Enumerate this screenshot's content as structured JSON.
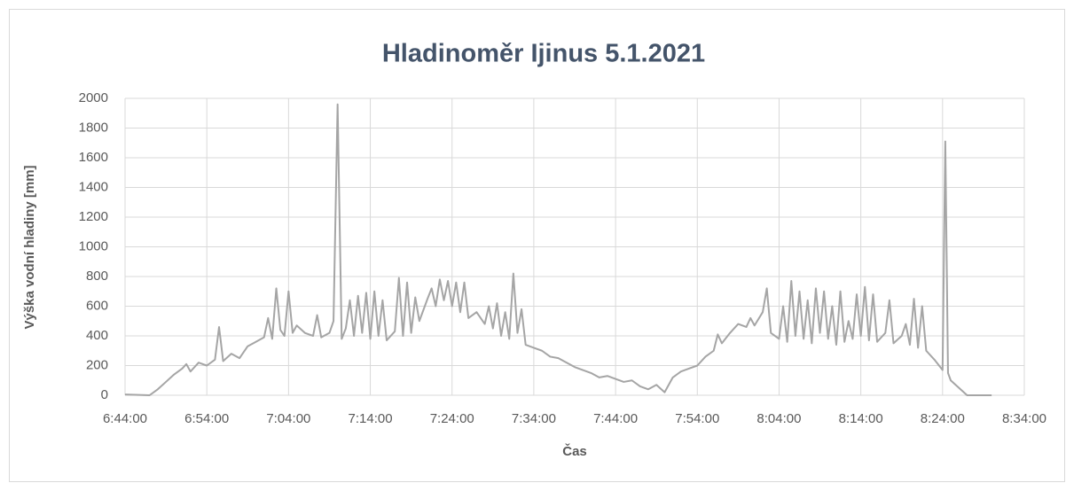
{
  "chart_data": {
    "type": "line",
    "title": "Hladinoměr Ijinus 5.1.2021",
    "x_label": "Čas",
    "y_label": "Výška vodní hladiny [mm]",
    "xlim": [
      "6:44:00",
      "8:34:00"
    ],
    "xticks": [
      "6:44:00",
      "6:54:00",
      "7:04:00",
      "7:14:00",
      "7:24:00",
      "7:34:00",
      "7:44:00",
      "7:54:00",
      "8:04:00",
      "8:14:00",
      "8:24:00",
      "8:34:00"
    ],
    "ylim": [
      0,
      2000
    ],
    "yticks": [
      0,
      200,
      400,
      600,
      800,
      1000,
      1200,
      1400,
      1600,
      1800,
      2000
    ],
    "grid": true,
    "x": [
      "6:44:00",
      "6:47:00",
      "6:48:00",
      "6:49:00",
      "6:50:00",
      "6:51:00",
      "6:51:30",
      "6:52:00",
      "6:53:00",
      "6:54:00",
      "6:55:00",
      "6:55:30",
      "6:56:00",
      "6:57:00",
      "6:58:00",
      "6:59:00",
      "7:00:00",
      "7:01:00",
      "7:01:30",
      "7:02:00",
      "7:02:30",
      "7:03:00",
      "7:03:30",
      "7:04:00",
      "7:04:30",
      "7:05:00",
      "7:06:00",
      "7:07:00",
      "7:07:30",
      "7:08:00",
      "7:09:00",
      "7:09:30",
      "7:10:00",
      "7:10:30",
      "7:11:00",
      "7:11:30",
      "7:12:00",
      "7:12:30",
      "7:13:00",
      "7:13:30",
      "7:14:00",
      "7:14:30",
      "7:15:00",
      "7:15:30",
      "7:16:00",
      "7:17:00",
      "7:17:30",
      "7:18:00",
      "7:18:30",
      "7:19:00",
      "7:19:30",
      "7:20:00",
      "7:21:00",
      "7:21:30",
      "7:22:00",
      "7:22:30",
      "7:23:00",
      "7:23:30",
      "7:24:00",
      "7:24:30",
      "7:25:00",
      "7:25:30",
      "7:26:00",
      "7:27:00",
      "7:28:00",
      "7:28:30",
      "7:29:00",
      "7:29:30",
      "7:30:00",
      "7:30:30",
      "7:31:00",
      "7:31:30",
      "7:32:00",
      "7:32:30",
      "7:33:00",
      "7:34:00",
      "7:35:00",
      "7:36:00",
      "7:37:00",
      "7:38:00",
      "7:39:00",
      "7:40:00",
      "7:41:00",
      "7:42:00",
      "7:43:00",
      "7:44:00",
      "7:45:00",
      "7:46:00",
      "7:47:00",
      "7:48:00",
      "7:49:00",
      "7:50:00",
      "7:51:00",
      "7:52:00",
      "7:53:00",
      "7:54:00",
      "7:55:00",
      "7:56:00",
      "7:56:30",
      "7:57:00",
      "7:58:00",
      "7:59:00",
      "8:00:00",
      "8:00:30",
      "8:01:00",
      "8:02:00",
      "8:02:30",
      "8:03:00",
      "8:04:00",
      "8:04:30",
      "8:05:00",
      "8:05:30",
      "8:06:00",
      "8:06:30",
      "8:07:00",
      "8:07:30",
      "8:08:00",
      "8:08:30",
      "8:09:00",
      "8:09:30",
      "8:10:00",
      "8:10:30",
      "8:11:00",
      "8:11:30",
      "8:12:00",
      "8:12:30",
      "8:13:00",
      "8:13:30",
      "8:14:00",
      "8:14:30",
      "8:15:00",
      "8:15:30",
      "8:16:00",
      "8:17:00",
      "8:17:30",
      "8:18:00",
      "8:19:00",
      "8:19:30",
      "8:20:00",
      "8:20:30",
      "8:21:00",
      "8:21:30",
      "8:22:00",
      "8:23:00",
      "8:24:00",
      "8:24:20",
      "8:24:40",
      "8:25:00",
      "8:26:00",
      "8:27:00",
      "8:30:00"
    ],
    "series": [
      {
        "name": "Výška vodní hladiny",
        "color": "#a5a5a5",
        "values": [
          5,
          0,
          40,
          90,
          140,
          180,
          210,
          160,
          220,
          200,
          240,
          460,
          230,
          280,
          250,
          330,
          360,
          390,
          520,
          380,
          720,
          440,
          400,
          700,
          420,
          470,
          420,
          400,
          540,
          390,
          420,
          500,
          1960,
          380,
          450,
          640,
          400,
          670,
          420,
          690,
          380,
          700,
          400,
          640,
          370,
          430,
          790,
          400,
          760,
          420,
          660,
          500,
          650,
          720,
          600,
          780,
          640,
          770,
          600,
          760,
          560,
          760,
          520,
          560,
          480,
          600,
          450,
          620,
          400,
          560,
          380,
          820,
          420,
          580,
          340,
          320,
          300,
          260,
          250,
          220,
          190,
          170,
          150,
          120,
          130,
          110,
          90,
          100,
          60,
          40,
          70,
          20,
          120,
          160,
          180,
          200,
          260,
          300,
          410,
          350,
          420,
          480,
          460,
          520,
          470,
          560,
          720,
          420,
          380,
          600,
          360,
          770,
          400,
          700,
          380,
          640,
          350,
          720,
          420,
          700,
          380,
          600,
          340,
          700,
          360,
          500,
          380,
          680,
          400,
          730,
          370,
          680,
          360,
          420,
          640,
          350,
          400,
          480,
          340,
          650,
          320,
          600,
          300,
          240,
          170,
          1710,
          150,
          100,
          50,
          0,
          0
        ]
      }
    ]
  }
}
